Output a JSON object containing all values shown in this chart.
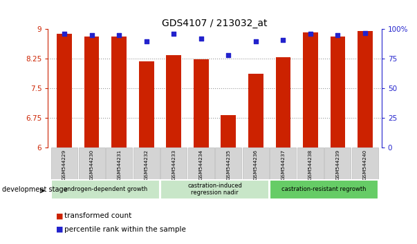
{
  "title": "GDS4107 / 213032_at",
  "samples": [
    "GSM544229",
    "GSM544230",
    "GSM544231",
    "GSM544232",
    "GSM544233",
    "GSM544234",
    "GSM544235",
    "GSM544236",
    "GSM544237",
    "GSM544238",
    "GSM544239",
    "GSM544240"
  ],
  "transformed_count": [
    8.88,
    8.82,
    8.82,
    8.18,
    8.35,
    8.24,
    6.82,
    7.88,
    8.29,
    8.92,
    8.82,
    8.95
  ],
  "percentile_rank": [
    96,
    95,
    95,
    90,
    96,
    92,
    78,
    90,
    91,
    96,
    95,
    97
  ],
  "ylim_left": [
    6.0,
    9.0
  ],
  "ylim_right": [
    0,
    100
  ],
  "yticks_left": [
    6.0,
    6.75,
    7.5,
    8.25,
    9.0
  ],
  "yticks_right": [
    0,
    25,
    50,
    75,
    100
  ],
  "ytick_labels_left": [
    "6",
    "6.75",
    "7.5",
    "8.25",
    "9"
  ],
  "ytick_labels_right": [
    "0",
    "25",
    "50",
    "75",
    "100%"
  ],
  "bar_color": "#cc2200",
  "dot_color": "#2222cc",
  "groups": [
    {
      "label": "androgen-dependent growth",
      "start": 0,
      "end": 3,
      "color": "#c8e6c8"
    },
    {
      "label": "castration-induced\nregression nadir",
      "start": 4,
      "end": 7,
      "color": "#c8e6c8"
    },
    {
      "label": "castration-resistant regrowth",
      "start": 8,
      "end": 11,
      "color": "#66cc66"
    }
  ],
  "legend_items": [
    {
      "label": "transformed count",
      "color": "#cc2200"
    },
    {
      "label": "percentile rank within the sample",
      "color": "#2222cc"
    }
  ],
  "grid_color": "#999999",
  "background_color": "#ffffff",
  "bar_bottom": 6.0,
  "gridlines": [
    6.75,
    7.5,
    8.25
  ]
}
